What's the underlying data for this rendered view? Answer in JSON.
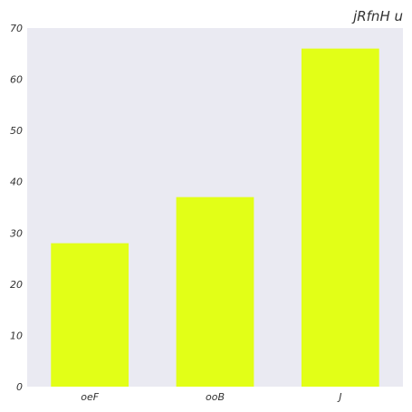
{
  "chart_data": {
    "type": "bar",
    "title": "jRfnH u",
    "xlabel": "",
    "ylabel": "",
    "categories": [
      "oeF",
      "ooB",
      "J"
    ],
    "values": [
      28,
      37,
      66
    ],
    "ylim": [
      0,
      70
    ],
    "yticks": [
      0,
      10,
      20,
      30,
      40,
      50,
      60,
      70
    ],
    "grid": false,
    "legend": "none"
  },
  "colors": {
    "bar": "#e2ff17",
    "plot_background": "#eaeaf2",
    "text": "#333333"
  }
}
